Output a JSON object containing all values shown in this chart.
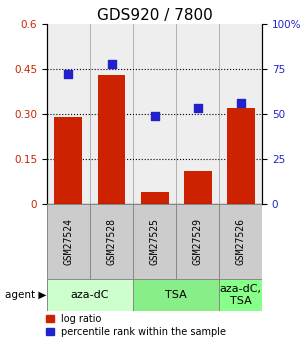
{
  "title": "GDS920 / 7800",
  "categories": [
    "GSM27524",
    "GSM27528",
    "GSM27525",
    "GSM27529",
    "GSM27526"
  ],
  "log_ratio": [
    0.29,
    0.43,
    0.04,
    0.11,
    0.32
  ],
  "percentile_rank": [
    72,
    78,
    49,
    53,
    56
  ],
  "bar_color": "#cc2200",
  "dot_color": "#2222cc",
  "agent_groups": [
    {
      "label": "aza-dC",
      "span": [
        0,
        2
      ],
      "color": "#ccffcc"
    },
    {
      "label": "TSA",
      "span": [
        2,
        4
      ],
      "color": "#88ee88"
    },
    {
      "label": "aza-dC,\nTSA",
      "span": [
        4,
        5
      ],
      "color": "#88ff88"
    }
  ],
  "ylim_left": [
    0,
    0.6
  ],
  "ylim_right": [
    0,
    100
  ],
  "yticks_left": [
    0,
    0.15,
    0.3,
    0.45,
    0.6
  ],
  "ytick_labels_left": [
    "0",
    "0.15",
    "0.30",
    "0.45",
    "0.6"
  ],
  "yticks_right": [
    0,
    25,
    50,
    75,
    100
  ],
  "ytick_labels_right": [
    "0",
    "25",
    "50",
    "75",
    "100%"
  ],
  "legend_log_ratio": "log ratio",
  "legend_percentile": "percentile rank within the sample",
  "agent_label": "agent",
  "title_fontsize": 11,
  "tick_fontsize": 7.5,
  "cat_fontsize": 7,
  "agent_fontsize": 8,
  "legend_fontsize": 7
}
